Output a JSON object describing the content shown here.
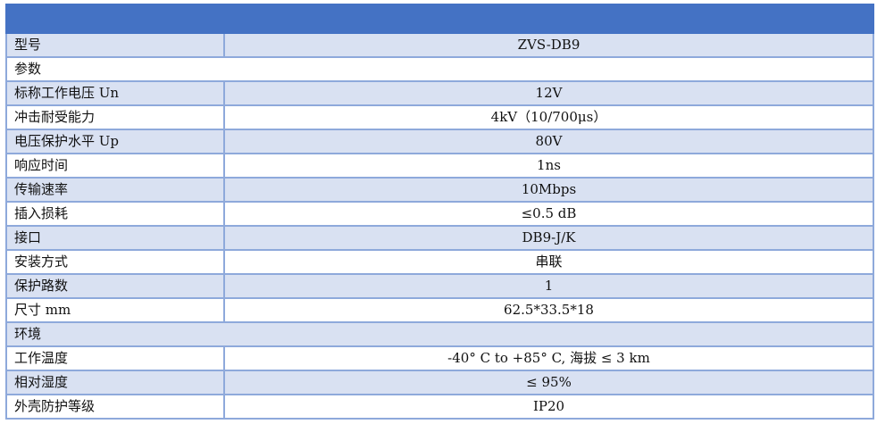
{
  "header_color": "#4472C4",
  "rows": [
    {
      "key": "型号",
      "value": "ZVS-DB9"
    },
    {
      "section": "参数"
    },
    {
      "key": "标称工作电压 Un",
      "value": "12V"
    },
    {
      "key": "冲击耐受能力",
      "value": "4kV（10/700μs）"
    },
    {
      "key": "电压保护水平 Up",
      "value": "80V"
    },
    {
      "key": "响应时间",
      "value": "1ns"
    },
    {
      "key": "传输速率",
      "value": "10Mbps"
    },
    {
      "key": "插入损耗",
      "value": "≤0.5 dB"
    },
    {
      "key": "接口",
      "value": "DB9-J/K"
    },
    {
      "key": "安装方式",
      "value": "串联"
    },
    {
      "key": "保护路数",
      "value": "1"
    },
    {
      "key": "尺寸 mm",
      "value": "62.5*33.5*18"
    },
    {
      "section": "环境"
    },
    {
      "key": "工作温度",
      "value": "-40° C to +85° C, 海拔 ≤ 3 km"
    },
    {
      "key": "相对湿度",
      "value": "≤ 95%"
    },
    {
      "key": "外壳防护等级",
      "value": "IP20"
    }
  ]
}
